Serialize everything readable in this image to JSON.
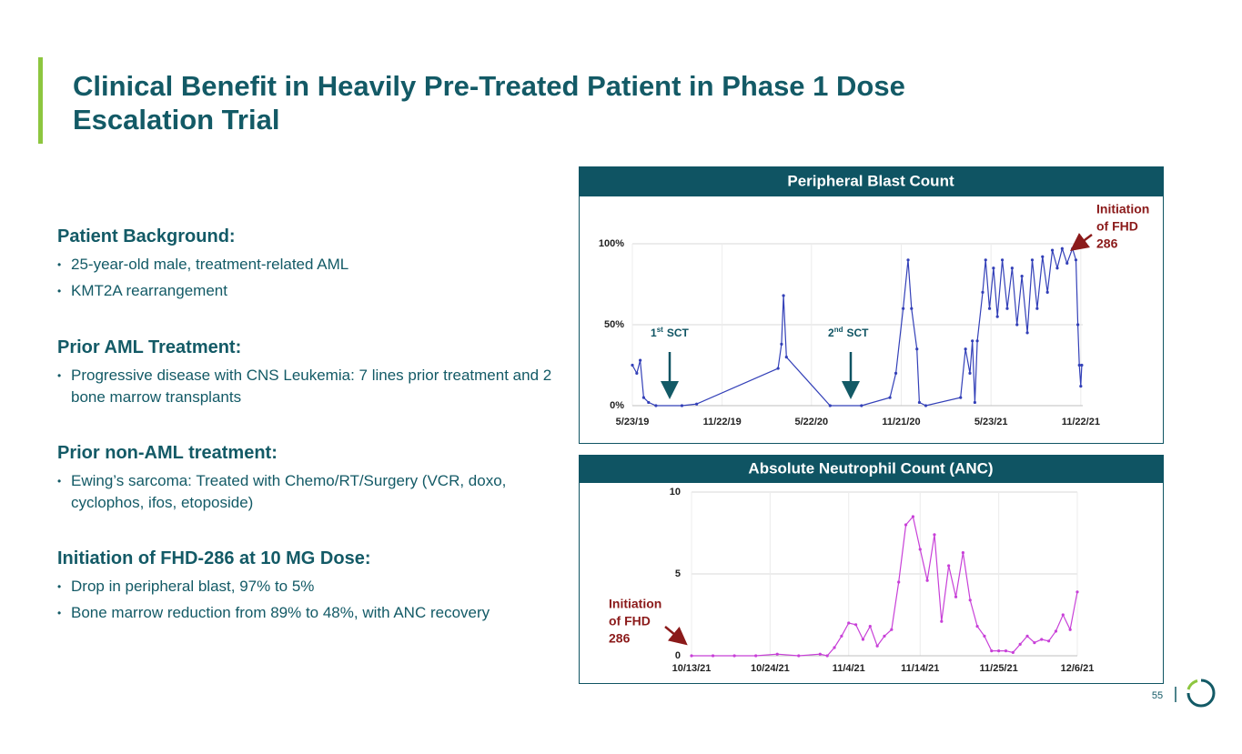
{
  "header": {
    "title": "Clinical Benefit in Heavily Pre-Treated Patient in Phase 1 Dose Escalation Trial"
  },
  "sections": [
    {
      "heading": "Patient Background:",
      "bullets": [
        "25-year-old male, treatment-related AML",
        "KMT2A rearrangement"
      ]
    },
    {
      "heading": "Prior AML Treatment:",
      "bullets": [
        "Progressive disease with CNS Leukemia: 7 lines prior treatment and 2 bone marrow transplants"
      ]
    },
    {
      "heading": "Prior non-AML treatment:",
      "bullets": [
        "Ewing’s sarcoma: Treated with Chemo/RT/Surgery (VCR, doxo, cyclophos, ifos, etoposide)"
      ]
    },
    {
      "heading": "Initiation of FHD-286 at 10 MG Dose:",
      "bullets": [
        "Drop in peripheral blast, 97% to 5%",
        "Bone marrow reduction from 89% to 48%, with ANC recovery"
      ]
    }
  ],
  "footer": {
    "page": "55"
  },
  "chart_data": [
    {
      "type": "line",
      "title": "Peripheral Blast Count",
      "color": "#3340b8",
      "x": [
        "5/23/19",
        "6/1/19",
        "6/8/19",
        "6/15/19",
        "6/25/19",
        "7/10/19",
        "9/1/19",
        "10/1/19",
        "3/15/20",
        "3/22/20",
        "3/26/20",
        "4/1/20",
        "6/29/20",
        "9/1/20",
        "10/29/20",
        "11/10/20",
        "11/25/20",
        "12/5/20",
        "12/12/20",
        "12/23/20",
        "12/28/20",
        "1/10/21",
        "3/22/21",
        "4/1/21",
        "4/10/21",
        "4/15/21",
        "4/20/21",
        "4/25/21",
        "5/6/21",
        "5/12/21",
        "5/20/21",
        "5/28/21",
        "6/5/21",
        "6/15/21",
        "6/25/21",
        "7/5/21",
        "7/15/21",
        "7/25/21",
        "8/5/21",
        "8/15/21",
        "8/25/21",
        "9/5/21",
        "9/15/21",
        "9/25/21",
        "10/5/21",
        "10/15/21",
        "10/25/21",
        "11/5/21",
        "11/12/21",
        "11/16/21",
        "11/19/21",
        "11/22/21",
        "11/24/21"
      ],
      "values": [
        25,
        20,
        28,
        5,
        2,
        0,
        0,
        1,
        23,
        38,
        68,
        30,
        0,
        0,
        5,
        20,
        60,
        90,
        60,
        35,
        2,
        0,
        5,
        35,
        20,
        40,
        2,
        40,
        70,
        90,
        60,
        85,
        55,
        90,
        60,
        85,
        50,
        80,
        45,
        90,
        60,
        92,
        70,
        96,
        85,
        97,
        88,
        97,
        90,
        50,
        25,
        12,
        25
      ],
      "xlim": [
        "5/23/19",
        "11/26/21"
      ],
      "xticks": [
        "5/23/19",
        "11/22/19",
        "5/22/20",
        "11/21/20",
        "5/23/21",
        "11/22/21"
      ],
      "ylim": [
        0,
        100
      ],
      "yticks": [
        {
          "value": 0,
          "label": "0%"
        },
        {
          "value": 50,
          "label": "50%"
        },
        {
          "value": 100,
          "label": "100%"
        }
      ],
      "grid": true,
      "annotations": [
        {
          "number": "1",
          "suffix": "st",
          "text": "SCT"
        },
        {
          "number": "2",
          "suffix": "nd",
          "text": "SCT"
        }
      ],
      "callout": [
        "Initiation",
        "of FHD",
        "286"
      ]
    },
    {
      "type": "line",
      "title": "Absolute Neutrophil Count (ANC)",
      "color": "#c840d8",
      "x": [
        "10/13/21",
        "10/16/21",
        "10/19/21",
        "10/22/21",
        "10/25/21",
        "10/28/21",
        "10/31/21",
        "11/1/21",
        "11/2/21",
        "11/3/21",
        "11/4/21",
        "11/5/21",
        "11/6/21",
        "11/7/21",
        "11/8/21",
        "11/9/21",
        "11/10/21",
        "11/11/21",
        "11/12/21",
        "11/13/21",
        "11/14/21",
        "11/15/21",
        "11/16/21",
        "11/17/21",
        "11/18/21",
        "11/19/21",
        "11/20/21",
        "11/21/21",
        "11/22/21",
        "11/23/21",
        "11/24/21",
        "11/25/21",
        "11/26/21",
        "11/27/21",
        "11/28/21",
        "11/29/21",
        "11/30/21",
        "12/1/21",
        "12/2/21",
        "12/3/21",
        "12/4/21",
        "12/5/21",
        "12/6/21"
      ],
      "values": [
        0,
        0,
        0,
        0,
        0.1,
        0,
        0.1,
        0,
        0.5,
        1.2,
        2,
        1.9,
        1,
        1.8,
        0.6,
        1.2,
        1.6,
        4.5,
        8,
        8.5,
        6.5,
        4.6,
        7.4,
        2.1,
        5.5,
        3.6,
        6.3,
        3.4,
        1.8,
        1.2,
        0.3,
        0.3,
        0.3,
        0.2,
        0.7,
        1.2,
        0.8,
        1,
        0.9,
        1.5,
        2.5,
        1.6,
        3.9
      ],
      "xlim": [
        "10/13/21",
        "12/6/21"
      ],
      "xticks": [
        "10/13/21",
        "10/24/21",
        "11/4/21",
        "11/14/21",
        "11/25/21",
        "12/6/21"
      ],
      "ylim": [
        0,
        10
      ],
      "yticks": [
        0,
        5,
        10
      ],
      "grid": true,
      "callout": [
        "Initiation",
        "of FHD",
        "286"
      ]
    }
  ]
}
